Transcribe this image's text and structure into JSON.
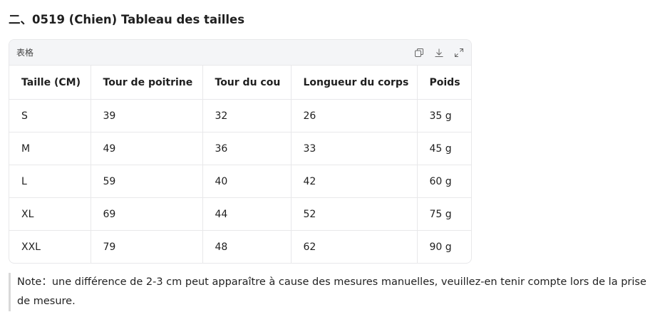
{
  "heading": "二、0519 (Chien) Tableau des tailles",
  "table": {
    "toolbar_label": "表格",
    "header": [
      "Taille (CM)",
      "Tour de poitrine",
      "Tour du cou",
      "Longueur du corps",
      "Poids"
    ],
    "rows": [
      [
        "S",
        "39",
        "32",
        "26",
        "35 g"
      ],
      [
        "M",
        "49",
        "36",
        "33",
        "45 g"
      ],
      [
        "L",
        "59",
        "40",
        "42",
        "60 g"
      ],
      [
        "XL",
        "69",
        "44",
        "52",
        "75 g"
      ],
      [
        "XXL",
        "79",
        "48",
        "62",
        "90 g"
      ]
    ]
  },
  "note": "Note：une différence de 2-3 cm peut apparaître à cause des mesures manuelles, veuillez-en tenir compte lors de la prise de mesure."
}
